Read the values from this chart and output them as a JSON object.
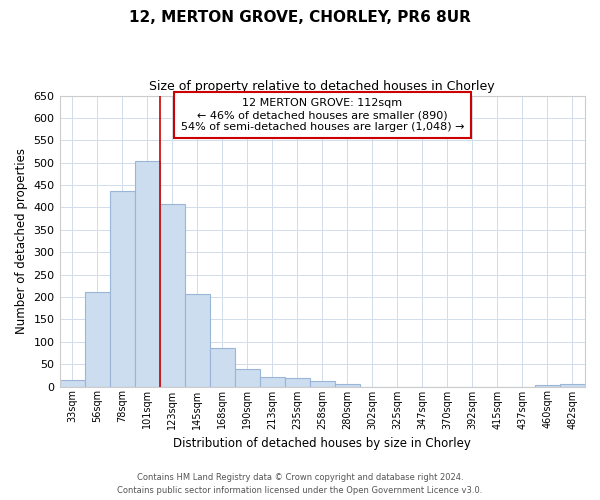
{
  "title": "12, MERTON GROVE, CHORLEY, PR6 8UR",
  "subtitle": "Size of property relative to detached houses in Chorley",
  "xlabel": "Distribution of detached houses by size in Chorley",
  "ylabel": "Number of detached properties",
  "bar_labels": [
    "33sqm",
    "56sqm",
    "78sqm",
    "101sqm",
    "123sqm",
    "145sqm",
    "168sqm",
    "190sqm",
    "213sqm",
    "235sqm",
    "258sqm",
    "280sqm",
    "302sqm",
    "325sqm",
    "347sqm",
    "370sqm",
    "392sqm",
    "415sqm",
    "437sqm",
    "460sqm",
    "482sqm"
  ],
  "bar_values": [
    15,
    212,
    437,
    503,
    408,
    207,
    87,
    40,
    22,
    19,
    13,
    6,
    0,
    0,
    0,
    0,
    0,
    0,
    0,
    3,
    5
  ],
  "bar_color": "#ccddf0",
  "bar_edge_color": "#9ab5d5",
  "property_line_index": 3.5,
  "property_line_color": "#cc0000",
  "annotation_title": "12 MERTON GROVE: 112sqm",
  "annotation_line1": "← 46% of detached houses are smaller (890)",
  "annotation_line2": "54% of semi-detached houses are larger (1,048) →",
  "annotation_box_color": "#ffffff",
  "annotation_box_edge": "#cc0000",
  "ylim": [
    0,
    650
  ],
  "yticks": [
    0,
    50,
    100,
    150,
    200,
    250,
    300,
    350,
    400,
    450,
    500,
    550,
    600,
    650
  ],
  "footer1": "Contains HM Land Registry data © Crown copyright and database right 2024.",
  "footer2": "Contains public sector information licensed under the Open Government Licence v3.0.",
  "background_color": "#ffffff",
  "grid_color": "#d0dcea"
}
